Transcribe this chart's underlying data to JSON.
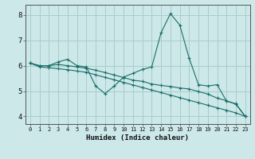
{
  "xlabel": "Humidex (Indice chaleur)",
  "ylabel": "",
  "bg_color": "#cce8e8",
  "grid_color": "#aacccc",
  "line_color": "#1a6e6a",
  "xlim": [
    -0.5,
    23.5
  ],
  "ylim": [
    3.7,
    8.4
  ],
  "xticks": [
    0,
    1,
    2,
    3,
    4,
    5,
    6,
    7,
    8,
    9,
    10,
    11,
    12,
    13,
    14,
    15,
    16,
    17,
    18,
    19,
    20,
    21,
    22,
    23
  ],
  "yticks": [
    4,
    5,
    6,
    7,
    8
  ],
  "line1": [
    6.1,
    6.0,
    6.0,
    6.15,
    6.25,
    6.0,
    5.95,
    5.2,
    4.9,
    5.2,
    5.55,
    5.7,
    5.85,
    5.95,
    7.3,
    8.05,
    7.6,
    6.3,
    5.25,
    5.2,
    5.25,
    4.6,
    4.5,
    4.0
  ],
  "line2": [
    6.1,
    6.0,
    6.0,
    6.05,
    6.0,
    5.95,
    5.9,
    5.82,
    5.73,
    5.63,
    5.53,
    5.43,
    5.38,
    5.28,
    5.22,
    5.18,
    5.12,
    5.08,
    4.98,
    4.88,
    4.72,
    4.62,
    4.48,
    4.0
  ],
  "line3": [
    6.1,
    5.95,
    5.92,
    5.88,
    5.84,
    5.79,
    5.74,
    5.64,
    5.54,
    5.44,
    5.34,
    5.24,
    5.14,
    5.04,
    4.94,
    4.84,
    4.74,
    4.64,
    4.54,
    4.44,
    4.34,
    4.24,
    4.14,
    4.0
  ],
  "xlabel_fontsize": 6.5,
  "xlabel_fontweight": "bold",
  "tick_fontsize_x": 5.0,
  "tick_fontsize_y": 6.5
}
